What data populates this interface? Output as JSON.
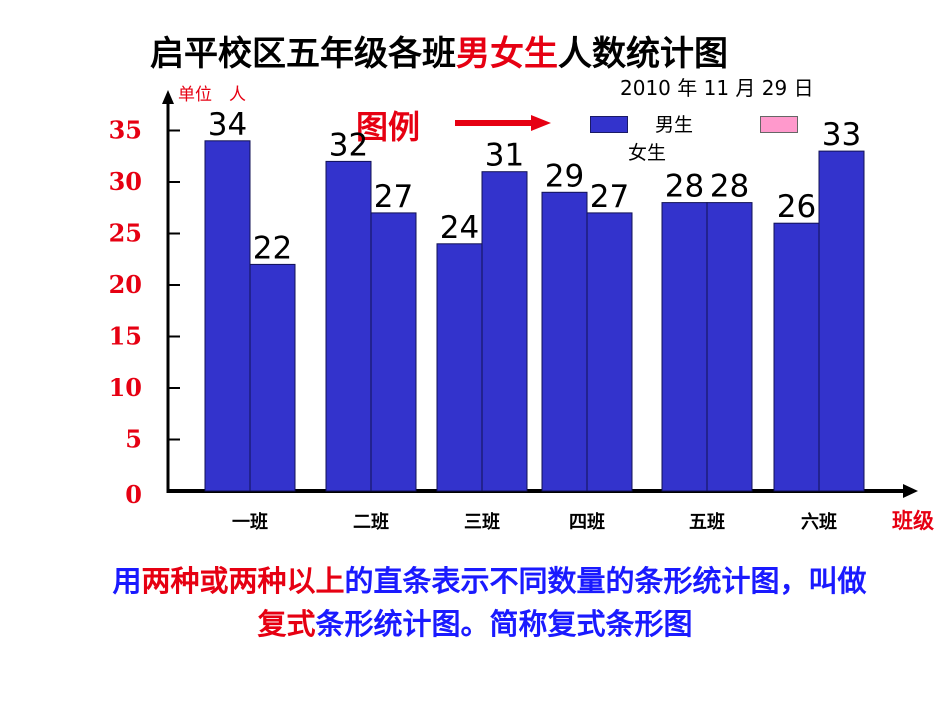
{
  "title": {
    "part1": "启平校区五年级各班",
    "part_boys": "男",
    "part_girls": "女",
    "part_sheng": "生",
    "part2": "人数统计图"
  },
  "date": "2010 年 11 月 29 日",
  "unit_label": "单位　人",
  "legend": {
    "title": "图例",
    "boys_label": "男生",
    "girls_label": "女生"
  },
  "caption": {
    "p1": "用",
    "p2": "两种或两种以上",
    "p3": "的直条表示不同数量的条形统计图，叫做",
    "p4": "复式",
    "p5": "条形统计图。简称复式条形图"
  },
  "chart_data": {
    "type": "bar",
    "categories": [
      "一班",
      "二班",
      "三班",
      "四班",
      "五班",
      "六班"
    ],
    "series": [
      {
        "name": "男生",
        "values": [
          34,
          32,
          24,
          29,
          28,
          26
        ],
        "color": "#3333cc"
      },
      {
        "name": "女生",
        "values": [
          22,
          27,
          31,
          27,
          28,
          33
        ],
        "color": "#3333cc"
      }
    ],
    "xlabel": "班级",
    "ylabel": "单位　人",
    "yticks": [
      0,
      5,
      10,
      15,
      20,
      25,
      30,
      35
    ],
    "ylim": [
      0,
      40
    ],
    "axis_color": "#000000",
    "tick_label_color": "#e60012",
    "legend_position": "top"
  }
}
